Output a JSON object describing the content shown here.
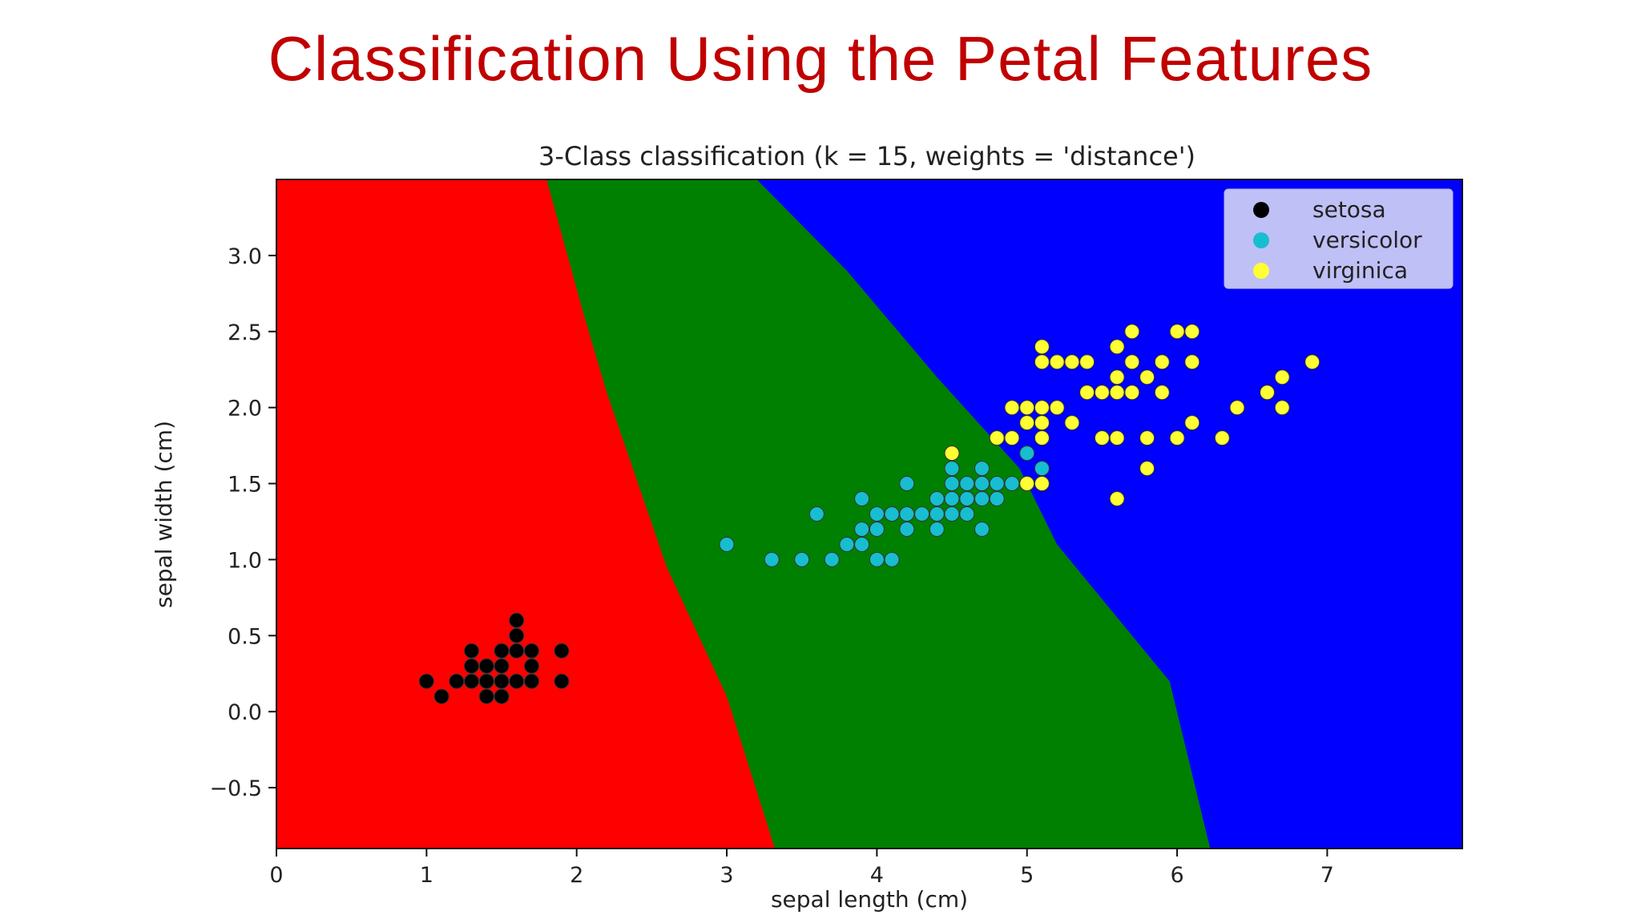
{
  "slide": {
    "title": "Classification Using the Petal Features"
  },
  "chart_data": {
    "type": "scatter",
    "title": "3-Class classification (k = 15, weights = 'distance')",
    "xlabel": "sepal length (cm)",
    "ylabel": "sepal width (cm)",
    "xlim": [
      0,
      7.9
    ],
    "ylim": [
      -0.9,
      3.5
    ],
    "xticks": [
      0,
      1,
      2,
      3,
      4,
      5,
      6,
      7
    ],
    "yticks": [
      -0.5,
      0.0,
      0.5,
      1.0,
      1.5,
      2.0,
      2.5,
      3.0
    ],
    "ytick_labels": [
      "−0.5",
      "0.0",
      "0.5",
      "1.0",
      "1.5",
      "2.0",
      "2.5",
      "3.0"
    ],
    "grid": false,
    "legend_position": "top-right",
    "regions": [
      {
        "name": "setosa",
        "color": "#ff0000"
      },
      {
        "name": "versicolor",
        "color": "#008000"
      },
      {
        "name": "virginica",
        "color": "#0000ff"
      }
    ],
    "boundaries": {
      "red_green": [
        [
          3.32,
          -0.9
        ],
        [
          3.0,
          0.1
        ],
        [
          2.6,
          0.95
        ],
        [
          2.2,
          2.1
        ],
        [
          2.05,
          2.6
        ],
        [
          1.8,
          3.5
        ]
      ],
      "green_blue": [
        [
          6.22,
          -0.9
        ],
        [
          5.95,
          0.2
        ],
        [
          5.2,
          1.1
        ],
        [
          4.95,
          1.6
        ],
        [
          4.4,
          2.2
        ],
        [
          3.8,
          2.9
        ],
        [
          3.2,
          3.5
        ]
      ]
    },
    "series": [
      {
        "name": "setosa",
        "color": "#000000",
        "x": [
          1.0,
          1.1,
          1.2,
          1.3,
          1.3,
          1.3,
          1.4,
          1.4,
          1.4,
          1.4,
          1.4,
          1.5,
          1.5,
          1.5,
          1.5,
          1.5,
          1.6,
          1.6,
          1.6,
          1.6,
          1.7,
          1.7,
          1.7,
          1.9,
          1.9,
          1.5,
          1.6
        ],
        "y": [
          0.2,
          0.1,
          0.2,
          0.2,
          0.3,
          0.4,
          0.1,
          0.2,
          0.3,
          0.2,
          0.3,
          0.1,
          0.2,
          0.3,
          0.4,
          0.4,
          0.2,
          0.4,
          0.6,
          0.2,
          0.2,
          0.3,
          0.4,
          0.2,
          0.4,
          0.1,
          0.5
        ]
      },
      {
        "name": "versicolor",
        "color": "#17becf",
        "x": [
          3.0,
          3.3,
          3.5,
          3.6,
          3.7,
          3.8,
          3.9,
          3.9,
          3.9,
          4.0,
          4.0,
          4.0,
          4.1,
          4.1,
          4.2,
          4.2,
          4.2,
          4.3,
          4.4,
          4.4,
          4.4,
          4.5,
          4.5,
          4.5,
          4.5,
          4.6,
          4.6,
          4.6,
          4.7,
          4.7,
          4.7,
          4.7,
          4.8,
          4.8,
          4.9,
          5.0,
          5.1,
          4.1
        ],
        "y": [
          1.1,
          1.0,
          1.0,
          1.3,
          1.0,
          1.1,
          1.1,
          1.2,
          1.4,
          1.0,
          1.2,
          1.3,
          1.3,
          1.0,
          1.2,
          1.3,
          1.5,
          1.3,
          1.2,
          1.3,
          1.4,
          1.3,
          1.5,
          1.6,
          1.4,
          1.3,
          1.4,
          1.5,
          1.2,
          1.4,
          1.6,
          1.5,
          1.4,
          1.5,
          1.5,
          1.7,
          1.6,
          1.3
        ]
      },
      {
        "name": "virginica",
        "color": "#ffff33",
        "x": [
          4.5,
          4.8,
          4.8,
          4.9,
          4.9,
          5.0,
          5.0,
          5.0,
          5.0,
          5.1,
          5.1,
          5.1,
          5.1,
          5.1,
          5.1,
          5.2,
          5.2,
          5.3,
          5.3,
          5.4,
          5.4,
          5.5,
          5.5,
          5.5,
          5.6,
          5.6,
          5.6,
          5.6,
          5.6,
          5.7,
          5.7,
          5.7,
          5.8,
          5.8,
          5.8,
          5.9,
          5.9,
          6.0,
          6.0,
          6.1,
          6.1,
          6.1,
          6.3,
          6.4,
          6.6,
          6.7,
          6.7,
          6.9,
          5.0,
          5.1
        ],
        "y": [
          1.7,
          1.8,
          1.8,
          1.8,
          2.0,
          2.0,
          1.9,
          1.5,
          1.5,
          2.4,
          2.3,
          2.0,
          1.9,
          1.8,
          1.5,
          2.3,
          2.0,
          2.3,
          1.9,
          2.3,
          2.1,
          2.1,
          1.8,
          2.1,
          2.4,
          2.2,
          2.1,
          1.8,
          1.4,
          2.5,
          2.3,
          2.1,
          2.2,
          1.8,
          1.6,
          2.3,
          2.1,
          2.5,
          1.8,
          2.5,
          2.3,
          1.9,
          1.8,
          2.0,
          2.1,
          2.2,
          2.0,
          2.3,
          1.9,
          1.5
        ]
      }
    ]
  }
}
